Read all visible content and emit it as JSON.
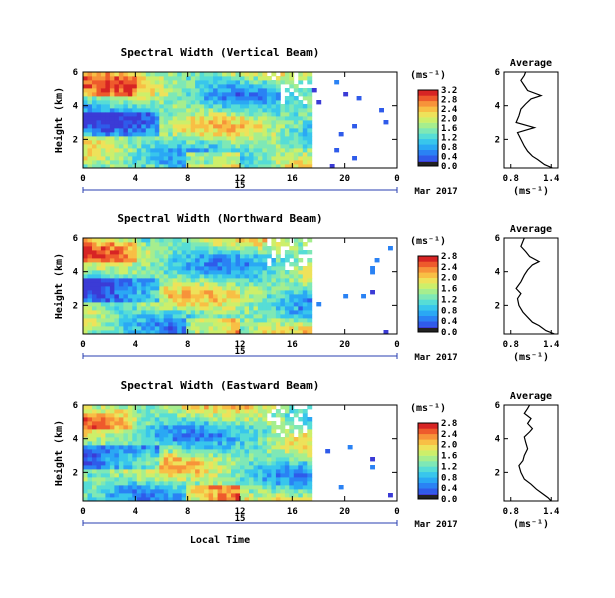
{
  "chart_data": [
    {
      "type": "heatmap",
      "title": "Spectral Width (Vertical Beam)",
      "ylabel": "Height (km)",
      "xlabel": "",
      "x_ticks": [
        "0",
        "4",
        "8",
        "12",
        "16",
        "20",
        "0"
      ],
      "y_ticks": [
        "2",
        "4",
        "6"
      ],
      "ylim": [
        0.3,
        6.0
      ],
      "xlim": [
        0,
        24
      ],
      "data_end_hour": 17.5,
      "date_marker": "15",
      "month_label": "Mar 2017",
      "colorbar": {
        "unit": "(ms⁻¹)",
        "ticks": [
          "0.0",
          "0.4",
          "0.8",
          "1.2",
          "1.6",
          "2.0",
          "2.4",
          "2.8",
          "3.2"
        ]
      },
      "average": {
        "title": "Average",
        "xlabel": "(ms⁻¹)",
        "x_ticks": [
          "0.8",
          "1.4"
        ],
        "y_ticks": [
          "2",
          "4",
          "6"
        ],
        "xlim": [
          0.7,
          1.5
        ],
        "profile": {
          "height": [
            0.3,
            0.5,
            0.8,
            1.0,
            1.3,
            1.6,
            2.0,
            2.4,
            2.7,
            3.0,
            3.4,
            3.8,
            4.1,
            4.4,
            4.6,
            4.9,
            5.2,
            5.5,
            5.8,
            6.0
          ],
          "value": [
            1.42,
            1.3,
            1.2,
            1.12,
            1.05,
            1.0,
            0.95,
            0.9,
            1.15,
            0.88,
            0.92,
            0.95,
            1.02,
            1.1,
            1.25,
            1.05,
            1.0,
            0.95,
            1.0,
            1.02
          ]
        }
      }
    },
    {
      "type": "heatmap",
      "title": "Spectral Width (Northward Beam)",
      "ylabel": "Height (km)",
      "xlabel": "",
      "x_ticks": [
        "0",
        "4",
        "8",
        "12",
        "16",
        "20",
        "0"
      ],
      "y_ticks": [
        "2",
        "4",
        "6"
      ],
      "ylim": [
        0.3,
        6.0
      ],
      "xlim": [
        0,
        24
      ],
      "data_end_hour": 17.5,
      "date_marker": "15",
      "month_label": "Mar 2017",
      "colorbar": {
        "unit": "(ms⁻¹)",
        "ticks": [
          "0.0",
          "0.4",
          "0.8",
          "1.2",
          "1.6",
          "2.0",
          "2.4",
          "2.8"
        ]
      },
      "average": {
        "title": "Average",
        "xlabel": "(ms⁻¹)",
        "x_ticks": [
          "0.8",
          "1.4"
        ],
        "y_ticks": [
          "2",
          "4",
          "6"
        ],
        "xlim": [
          0.7,
          1.5
        ],
        "profile": {
          "height": [
            0.3,
            0.5,
            0.8,
            1.0,
            1.3,
            1.6,
            2.0,
            2.4,
            2.7,
            3.0,
            3.4,
            3.8,
            4.1,
            4.4,
            4.6,
            4.9,
            5.2,
            5.5,
            5.8,
            6.0
          ],
          "value": [
            1.45,
            1.32,
            1.22,
            1.12,
            1.05,
            0.98,
            0.92,
            0.9,
            0.95,
            0.88,
            0.95,
            1.0,
            1.05,
            1.12,
            1.22,
            1.08,
            1.02,
            0.95,
            0.98,
            1.0
          ]
        }
      }
    },
    {
      "type": "heatmap",
      "title": "Spectral Width (Eastward Beam)",
      "ylabel": "Height (km)",
      "xlabel": "Local Time",
      "x_ticks": [
        "0",
        "4",
        "8",
        "12",
        "16",
        "20",
        "0"
      ],
      "y_ticks": [
        "2",
        "4",
        "6"
      ],
      "ylim": [
        0.3,
        6.0
      ],
      "xlim": [
        0,
        24
      ],
      "data_end_hour": 17.5,
      "date_marker": "15",
      "month_label": "Mar 2017",
      "colorbar": {
        "unit": "(ms⁻¹)",
        "ticks": [
          "0.0",
          "0.4",
          "0.8",
          "1.2",
          "1.6",
          "2.0",
          "2.4",
          "2.8"
        ]
      },
      "average": {
        "title": "Average",
        "xlabel": "(ms⁻¹)",
        "x_ticks": [
          "0.8",
          "1.4"
        ],
        "y_ticks": [
          "2",
          "4",
          "6"
        ],
        "xlim": [
          0.7,
          1.5
        ],
        "profile": {
          "height": [
            0.3,
            0.5,
            0.8,
            1.0,
            1.3,
            1.6,
            2.0,
            2.4,
            2.7,
            3.0,
            3.4,
            3.8,
            4.1,
            4.4,
            4.6,
            4.9,
            5.2,
            5.5,
            5.8,
            6.0
          ],
          "value": [
            1.4,
            1.35,
            1.25,
            1.18,
            1.1,
            1.0,
            0.95,
            0.92,
            0.98,
            1.0,
            1.05,
            1.02,
            1.0,
            1.08,
            1.12,
            1.05,
            1.1,
            1.0,
            1.05,
            1.08
          ]
        }
      }
    }
  ]
}
